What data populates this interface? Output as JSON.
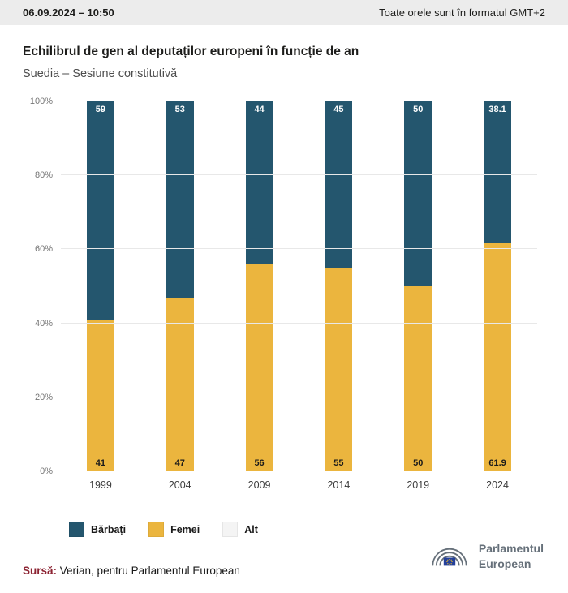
{
  "header": {
    "datetime": "06.09.2024 – 10:50",
    "timezone_note": "Toate orele sunt în formatul GMT+2"
  },
  "title": "Echilibrul de gen al deputaților europeni în funcție de an",
  "subtitle": "Suedia – Sesiune constitutivă",
  "chart_data": {
    "type": "bar",
    "stacked": true,
    "title": "Echilibrul de gen al deputaților europeni în funcție de an",
    "subtitle": "Suedia – Sesiune constitutivă",
    "categories": [
      "1999",
      "2004",
      "2009",
      "2014",
      "2019",
      "2024"
    ],
    "series": [
      {
        "name": "Bărbați",
        "color": "#24566e",
        "values": [
          59,
          53,
          44,
          45,
          50,
          38.1
        ]
      },
      {
        "name": "Femei",
        "color": "#ebb53e",
        "values": [
          41,
          47,
          56,
          55,
          50,
          61.9
        ]
      },
      {
        "name": "Alt",
        "color": "#f4f4f4",
        "values": [
          0,
          0,
          0,
          0,
          0,
          0
        ]
      }
    ],
    "xlabel": "",
    "ylabel": "",
    "ylim": [
      0,
      100
    ],
    "yticks": [
      "0%",
      "20%",
      "40%",
      "60%",
      "80%",
      "100%"
    ],
    "grid": true,
    "legend_position": "bottom"
  },
  "source": {
    "label": "Sursă:",
    "text": " Verian, pentru Parlamentul European"
  },
  "logo": {
    "line1": "Parlamentul",
    "line2": "European"
  }
}
